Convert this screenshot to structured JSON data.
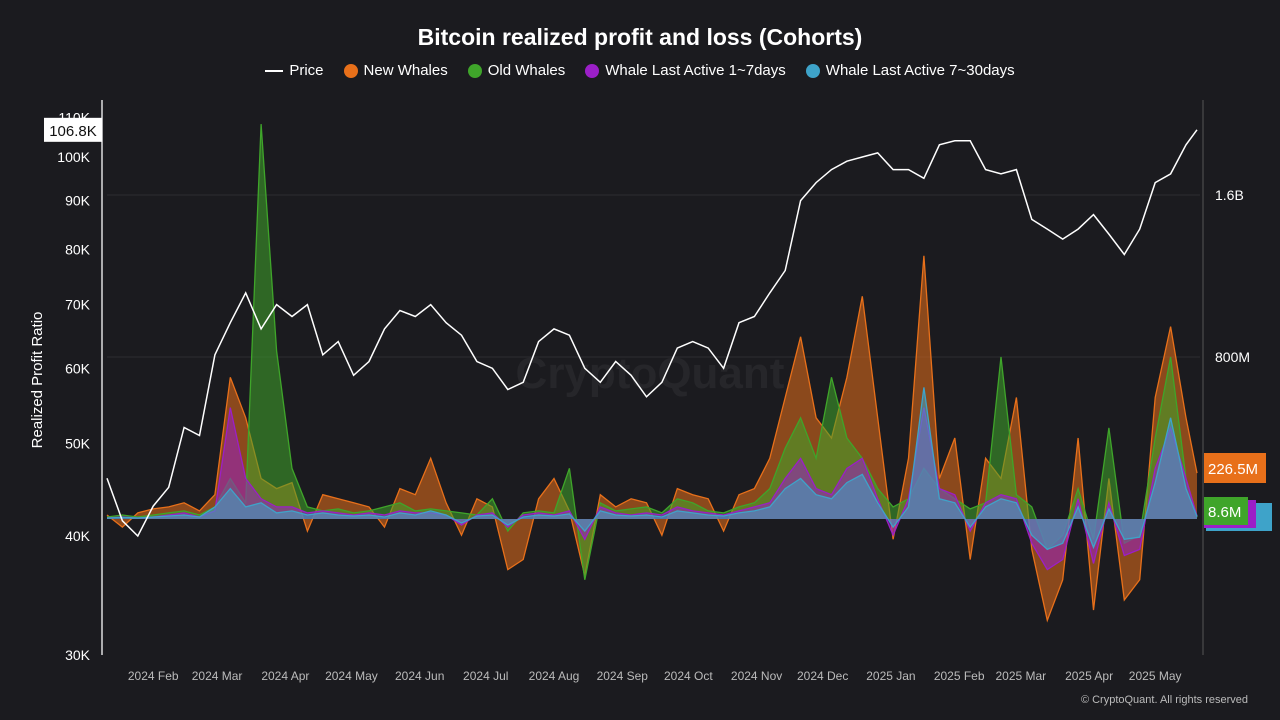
{
  "chart_data": {
    "type": "line",
    "title": "Bitcoin realized profit and loss (Cohorts)",
    "ylabel": "Realized Profit Ratio",
    "y_left": {
      "scale": "log",
      "range": [
        30000,
        110000
      ],
      "ticks": [
        "30K",
        "40K",
        "50K",
        "60K",
        "70K",
        "80K",
        "90K",
        "100K",
        "110K"
      ],
      "tick_values": [
        30000,
        40000,
        50000,
        60000,
        70000,
        80000,
        90000,
        100000,
        110000
      ]
    },
    "y_right": {
      "scale": "linear",
      "ticks": [
        "800M",
        "1.6B"
      ],
      "tick_values": [
        800,
        1600
      ],
      "unit": "USD millions"
    },
    "x_ticks": [
      {
        "label": "2024 Feb",
        "date": "2024-02-01"
      },
      {
        "label": "2024 Mar",
        "date": "2024-03-01"
      },
      {
        "label": "2024 Apr",
        "date": "2024-04-01"
      },
      {
        "label": "2024 May",
        "date": "2024-05-01"
      },
      {
        "label": "2024 Jun",
        "date": "2024-06-01"
      },
      {
        "label": "2024 Jul",
        "date": "2024-07-01"
      },
      {
        "label": "2024 Aug",
        "date": "2024-08-01"
      },
      {
        "label": "2024 Sep",
        "date": "2024-09-01"
      },
      {
        "label": "2024 Oct",
        "date": "2024-10-01"
      },
      {
        "label": "2024 Nov",
        "date": "2024-11-01"
      },
      {
        "label": "2024 Dec",
        "date": "2024-12-01"
      },
      {
        "label": "2025 Jan",
        "date": "2025-01-01"
      },
      {
        "label": "2025 Feb",
        "date": "2025-02-01"
      },
      {
        "label": "2025 Mar",
        "date": "2025-03-01"
      },
      {
        "label": "2025 Apr",
        "date": "2025-04-01"
      },
      {
        "label": "2025 May",
        "date": "2025-05-01"
      }
    ],
    "x_range": [
      "2024-01-11",
      "2025-05-20"
    ],
    "grid": true,
    "legend_position": "top",
    "dates": [
      "2024-01-11",
      "2024-01-18",
      "2024-01-25",
      "2024-02-01",
      "2024-02-08",
      "2024-02-15",
      "2024-02-22",
      "2024-02-29",
      "2024-03-07",
      "2024-03-14",
      "2024-03-21",
      "2024-03-28",
      "2024-04-04",
      "2024-04-11",
      "2024-04-18",
      "2024-04-25",
      "2024-05-02",
      "2024-05-09",
      "2024-05-16",
      "2024-05-23",
      "2024-05-30",
      "2024-06-06",
      "2024-06-13",
      "2024-06-20",
      "2024-06-27",
      "2024-07-04",
      "2024-07-11",
      "2024-07-18",
      "2024-07-25",
      "2024-08-01",
      "2024-08-08",
      "2024-08-15",
      "2024-08-22",
      "2024-08-29",
      "2024-09-05",
      "2024-09-12",
      "2024-09-19",
      "2024-09-26",
      "2024-10-03",
      "2024-10-10",
      "2024-10-17",
      "2024-10-24",
      "2024-10-31",
      "2024-11-07",
      "2024-11-14",
      "2024-11-21",
      "2024-11-28",
      "2024-12-05",
      "2024-12-12",
      "2024-12-19",
      "2024-12-26",
      "2025-01-02",
      "2025-01-09",
      "2025-01-16",
      "2025-01-23",
      "2025-01-30",
      "2025-02-06",
      "2025-02-13",
      "2025-02-20",
      "2025-02-27",
      "2025-03-06",
      "2025-03-13",
      "2025-03-20",
      "2025-03-27",
      "2025-04-03",
      "2025-04-10",
      "2025-04-17",
      "2025-04-24",
      "2025-05-01",
      "2025-05-08",
      "2025-05-15",
      "2025-05-20"
    ],
    "series": [
      {
        "name": "Price",
        "axis": "left",
        "color": "#ffffff",
        "kind": "line",
        "last_label": "106.8K",
        "values": [
          46000,
          41500,
          40000,
          43000,
          45000,
          52000,
          51000,
          62000,
          67000,
          72000,
          66000,
          70000,
          68000,
          70000,
          62000,
          64000,
          59000,
          61000,
          66000,
          69000,
          68000,
          70000,
          67000,
          65000,
          61000,
          60000,
          57000,
          58000,
          64000,
          66000,
          65000,
          60000,
          58000,
          61000,
          59000,
          56000,
          58000,
          63000,
          64000,
          63000,
          60000,
          67000,
          68000,
          72000,
          76000,
          90000,
          94000,
          97000,
          99000,
          100000,
          101000,
          97000,
          97000,
          95000,
          103000,
          104000,
          104000,
          97000,
          96000,
          97000,
          86000,
          84000,
          82000,
          84000,
          87000,
          83000,
          79000,
          84000,
          94000,
          96000,
          103000,
          106800
        ]
      },
      {
        "name": "New Whales",
        "axis": "right",
        "color": "#e8701a",
        "kind": "area",
        "last_label": "226.5M",
        "values": [
          20,
          -40,
          30,
          50,
          60,
          80,
          40,
          120,
          700,
          500,
          200,
          150,
          180,
          -60,
          120,
          100,
          80,
          60,
          -40,
          150,
          120,
          300,
          80,
          -80,
          100,
          60,
          -250,
          -200,
          100,
          200,
          40,
          -280,
          120,
          60,
          100,
          80,
          -80,
          150,
          120,
          100,
          -60,
          120,
          150,
          300,
          600,
          900,
          500,
          400,
          700,
          1100,
          500,
          -100,
          300,
          1300,
          200,
          400,
          -200,
          300,
          200,
          600,
          -150,
          -500,
          -300,
          400,
          -450,
          200,
          -400,
          -300,
          600,
          950,
          500,
          226.5
        ]
      },
      {
        "name": "Old Whales",
        "axis": "right",
        "color": "#3fa52a",
        "kind": "area",
        "last_label": "8.6M",
        "values": [
          10,
          20,
          10,
          20,
          30,
          40,
          20,
          60,
          200,
          80,
          1950,
          830,
          250,
          60,
          40,
          50,
          30,
          40,
          60,
          80,
          40,
          50,
          40,
          30,
          20,
          100,
          -60,
          30,
          40,
          30,
          250,
          -300,
          80,
          40,
          50,
          60,
          30,
          100,
          80,
          40,
          30,
          60,
          80,
          150,
          350,
          500,
          300,
          700,
          400,
          300,
          150,
          60,
          100,
          250,
          150,
          100,
          50,
          80,
          800,
          120,
          60,
          -150,
          -80,
          150,
          -100,
          450,
          -120,
          -80,
          400,
          800,
          200,
          8.6
        ]
      },
      {
        "name": "Whale Last Active 1~7days",
        "axis": "right",
        "color": "#9b1fc7",
        "kind": "area",
        "values": [
          5,
          10,
          5,
          10,
          20,
          30,
          10,
          40,
          550,
          200,
          100,
          60,
          60,
          30,
          40,
          30,
          20,
          30,
          20,
          40,
          30,
          30,
          20,
          -30,
          20,
          30,
          -40,
          20,
          30,
          20,
          40,
          -100,
          60,
          30,
          20,
          30,
          20,
          60,
          40,
          30,
          20,
          40,
          60,
          80,
          200,
          300,
          150,
          120,
          250,
          300,
          100,
          -80,
          100,
          550,
          150,
          120,
          -60,
          80,
          120,
          100,
          -120,
          -250,
          -200,
          100,
          -220,
          80,
          -180,
          -150,
          250,
          450,
          200,
          15
        ]
      },
      {
        "name": "Whale Last Active 7~30days",
        "axis": "right",
        "color": "#3ea3c9",
        "kind": "area",
        "values": [
          5,
          8,
          5,
          10,
          15,
          20,
          10,
          60,
          150,
          60,
          80,
          30,
          40,
          20,
          30,
          20,
          15,
          20,
          10,
          30,
          20,
          40,
          20,
          -20,
          15,
          20,
          -30,
          10,
          20,
          15,
          25,
          -60,
          40,
          20,
          15,
          20,
          10,
          40,
          30,
          20,
          15,
          30,
          40,
          60,
          150,
          200,
          120,
          100,
          180,
          220,
          80,
          -40,
          60,
          650,
          100,
          80,
          -40,
          60,
          100,
          80,
          -80,
          -150,
          -120,
          60,
          -140,
          50,
          -100,
          -90,
          180,
          500,
          150,
          12
        ]
      }
    ]
  },
  "watermark": "CryptoQuant",
  "copyright": "© CryptoQuant. All rights reserved",
  "colors": {
    "background": "#1b1b1f",
    "new_whales": "#e8701a",
    "old_whales": "#3fa52a",
    "active_1_7": "#9b1fc7",
    "active_7_30": "#3ea3c9"
  }
}
